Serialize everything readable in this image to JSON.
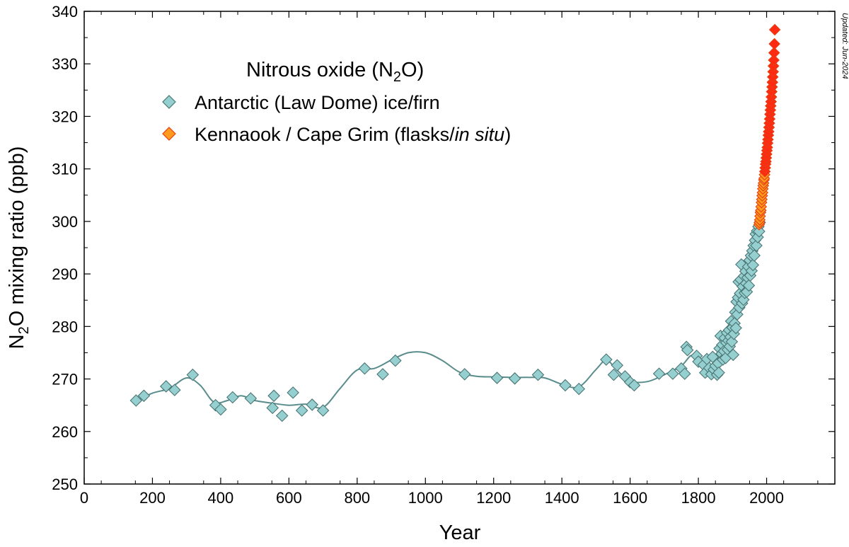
{
  "chart_data": {
    "type": "scatter",
    "title": "",
    "legend_title": "Nitrous oxide (N2O)",
    "legend_title_parts": {
      "prefix": "Nitrous oxide (N",
      "sub": "2",
      "suffix": "O)"
    },
    "xlabel": "Year",
    "ylabel": "N2O mixing ratio (ppb)",
    "ylabel_parts": {
      "prefix": "N",
      "sub": "2",
      "suffix": "O mixing ratio (ppb)"
    },
    "xlim": [
      0,
      2200
    ],
    "ylim": [
      250,
      340
    ],
    "x_ticks": [
      0,
      200,
      400,
      600,
      800,
      1000,
      1200,
      1400,
      1600,
      1800,
      2000
    ],
    "y_ticks": [
      250,
      260,
      270,
      280,
      290,
      300,
      310,
      320,
      330,
      340
    ],
    "annotation": "Updated: Jun-2024",
    "legend_position": "top-left",
    "series": [
      {
        "name": "Antarctic (Law Dome) ice/firn",
        "marker": "diamond",
        "color": "#96cfcf",
        "edge_color": "#4a7575",
        "points": [
          [
            152,
            265.9
          ],
          [
            175,
            266.8
          ],
          [
            240,
            268.6
          ],
          [
            265,
            267.9
          ],
          [
            318,
            270.8
          ],
          [
            385,
            265.0
          ],
          [
            400,
            264.2
          ],
          [
            435,
            266.5
          ],
          [
            488,
            266.3
          ],
          [
            552,
            264.5
          ],
          [
            556,
            266.8
          ],
          [
            580,
            263.0
          ],
          [
            612,
            267.4
          ],
          [
            638,
            264.0
          ],
          [
            668,
            265.1
          ],
          [
            700,
            264.0
          ],
          [
            822,
            272.0
          ],
          [
            875,
            270.9
          ],
          [
            912,
            273.5
          ],
          [
            1115,
            270.9
          ],
          [
            1210,
            270.2
          ],
          [
            1262,
            270.1
          ],
          [
            1330,
            270.8
          ],
          [
            1410,
            268.8
          ],
          [
            1450,
            268.1
          ],
          [
            1530,
            273.7
          ],
          [
            1552,
            270.8
          ],
          [
            1562,
            272.6
          ],
          [
            1585,
            270.5
          ],
          [
            1600,
            269.4
          ],
          [
            1612,
            268.8
          ],
          [
            1685,
            271.0
          ],
          [
            1725,
            271.0
          ],
          [
            1750,
            272.0
          ],
          [
            1760,
            271.0
          ],
          [
            1765,
            276.1
          ],
          [
            1768,
            275.5
          ],
          [
            1795,
            274.4
          ],
          [
            1800,
            273.3
          ],
          [
            1815,
            272.7
          ],
          [
            1820,
            271.2
          ],
          [
            1825,
            273.8
          ],
          [
            1832,
            272.1
          ],
          [
            1838,
            270.9
          ],
          [
            1842,
            274.2
          ],
          [
            1845,
            271.8
          ],
          [
            1850,
            272.5
          ],
          [
            1855,
            270.8
          ],
          [
            1858,
            273.0
          ],
          [
            1860,
            271.2
          ],
          [
            1862,
            275.8
          ],
          [
            1865,
            278.2
          ],
          [
            1868,
            274.8
          ],
          [
            1870,
            276.5
          ],
          [
            1872,
            273.7
          ],
          [
            1875,
            275.3
          ],
          [
            1877,
            277.8
          ],
          [
            1880,
            274.0
          ],
          [
            1882,
            276.9
          ],
          [
            1884,
            278.8
          ],
          [
            1886,
            275.6
          ],
          [
            1888,
            277.3
          ],
          [
            1890,
            279.3
          ],
          [
            1892,
            276.2
          ],
          [
            1894,
            278.0
          ],
          [
            1896,
            281.0
          ],
          [
            1898,
            277.1
          ],
          [
            1900,
            279.8
          ],
          [
            1902,
            274.6
          ],
          [
            1904,
            278.6
          ],
          [
            1906,
            280.6
          ],
          [
            1908,
            282.7
          ],
          [
            1910,
            279.7
          ],
          [
            1912,
            284.7
          ],
          [
            1914,
            282.3
          ],
          [
            1916,
            285.5
          ],
          [
            1918,
            288.5
          ],
          [
            1920,
            283.6
          ],
          [
            1922,
            286.3
          ],
          [
            1924,
            288.9
          ],
          [
            1926,
            291.8
          ],
          [
            1928,
            284.4
          ],
          [
            1930,
            287.6
          ],
          [
            1932,
            285.1
          ],
          [
            1934,
            289.6
          ],
          [
            1936,
            286.4
          ],
          [
            1938,
            290.5
          ],
          [
            1940,
            288.2
          ],
          [
            1942,
            286.6
          ],
          [
            1944,
            289.3
          ],
          [
            1946,
            291.4
          ],
          [
            1948,
            287.8
          ],
          [
            1950,
            292.6
          ],
          [
            1952,
            289.7
          ],
          [
            1954,
            293.5
          ],
          [
            1956,
            290.6
          ],
          [
            1958,
            294.4
          ],
          [
            1960,
            291.7
          ],
          [
            1962,
            295.4
          ],
          [
            1964,
            293.5
          ],
          [
            1966,
            296.4
          ],
          [
            1968,
            297.6
          ],
          [
            1970,
            295.4
          ],
          [
            1972,
            298.2
          ],
          [
            1974,
            297.0
          ],
          [
            1976,
            299.0
          ],
          [
            1978,
            298.1
          ],
          [
            1980,
            299.8
          ]
        ]
      },
      {
        "name": "Kennaook / Cape Grim (flasks/in situ)",
        "name_parts": {
          "prefix": "Kennaook / Cape Grim (flasks/",
          "italic": "in situ",
          "suffix": ")"
        },
        "marker": "diamond",
        "color": "#ff9a1e",
        "edge_color": "#e63e12",
        "recent_color": "#ff2a12",
        "points": [
          [
            1978,
            299.4
          ],
          [
            1979,
            299.8
          ],
          [
            1980,
            300.3
          ],
          [
            1981,
            301.0
          ],
          [
            1982,
            301.7
          ],
          [
            1983,
            302.1
          ],
          [
            1984,
            302.8
          ],
          [
            1985,
            303.6
          ],
          [
            1986,
            304.2
          ],
          [
            1987,
            304.9
          ],
          [
            1988,
            305.5
          ],
          [
            1989,
            306.2
          ],
          [
            1990,
            306.8
          ],
          [
            1991,
            307.3
          ],
          [
            1992,
            307.9
          ],
          [
            1993,
            308.2
          ],
          [
            1994,
            308.9
          ],
          [
            1995,
            309.5
          ],
          [
            1996,
            310.2
          ],
          [
            1997,
            310.9
          ],
          [
            1998,
            311.4
          ],
          [
            1999,
            312.1
          ],
          [
            2000,
            312.8
          ],
          [
            2001,
            313.5
          ],
          [
            2002,
            314.1
          ],
          [
            2003,
            314.9
          ],
          [
            2004,
            315.6
          ],
          [
            2005,
            316.4
          ],
          [
            2006,
            317.1
          ],
          [
            2007,
            317.9
          ],
          [
            2008,
            318.7
          ],
          [
            2009,
            319.5
          ],
          [
            2010,
            320.4
          ],
          [
            2011,
            321.2
          ],
          [
            2012,
            322.0
          ],
          [
            2013,
            322.8
          ],
          [
            2014,
            323.7
          ],
          [
            2015,
            324.7
          ],
          [
            2016,
            325.6
          ],
          [
            2017,
            326.5
          ],
          [
            2018,
            327.5
          ],
          [
            2019,
            328.5
          ],
          [
            2020,
            329.6
          ],
          [
            2021,
            330.7
          ],
          [
            2022,
            332.1
          ],
          [
            2023,
            333.8
          ],
          [
            2024,
            336.5
          ]
        ]
      }
    ],
    "smoothed_fit": {
      "name": "spline fit",
      "color": "#5a8c8c",
      "points": [
        [
          152,
          265.8
        ],
        [
          200,
          267.3
        ],
        [
          250,
          268.2
        ],
        [
          300,
          270.2
        ],
        [
          340,
          268.8
        ],
        [
          380,
          265.6
        ],
        [
          420,
          265.9
        ],
        [
          460,
          266.8
        ],
        [
          500,
          265.9
        ],
        [
          550,
          265.4
        ],
        [
          600,
          265.0
        ],
        [
          650,
          265.2
        ],
        [
          700,
          264.6
        ],
        [
          750,
          268.2
        ],
        [
          800,
          271.7
        ],
        [
          850,
          272.0
        ],
        [
          900,
          273.6
        ],
        [
          950,
          275.0
        ],
        [
          1000,
          275.0
        ],
        [
          1050,
          273.5
        ],
        [
          1100,
          271.3
        ],
        [
          1150,
          270.5
        ],
        [
          1200,
          270.4
        ],
        [
          1250,
          270.3
        ],
        [
          1300,
          270.3
        ],
        [
          1350,
          270.2
        ],
        [
          1400,
          269.0
        ],
        [
          1450,
          268.5
        ],
        [
          1500,
          271.8
        ],
        [
          1530,
          273.6
        ],
        [
          1560,
          271.8
        ],
        [
          1600,
          269.6
        ],
        [
          1650,
          269.5
        ],
        [
          1700,
          270.8
        ],
        [
          1750,
          272.5
        ],
        [
          1780,
          274.5
        ],
        [
          1800,
          273.0
        ],
        [
          1825,
          272.5
        ],
        [
          1850,
          272.8
        ],
        [
          1870,
          275.0
        ],
        [
          1890,
          278.0
        ],
        [
          1910,
          282.0
        ],
        [
          1930,
          286.0
        ],
        [
          1950,
          290.5
        ],
        [
          1965,
          294.5
        ],
        [
          1975,
          297.5
        ],
        [
          1980,
          299.5
        ]
      ]
    }
  }
}
